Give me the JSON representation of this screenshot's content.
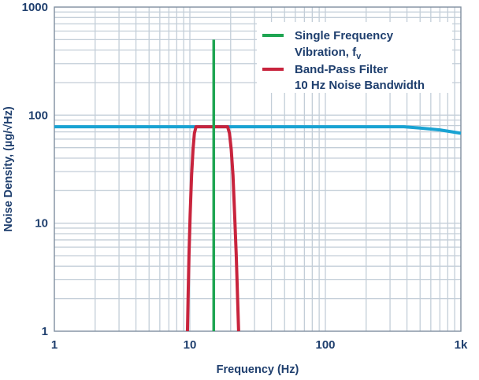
{
  "chart_data": {
    "type": "line",
    "xlabel": "Frequency (Hz)",
    "ylabel": "Noise Density, (µg/√Hz)",
    "xscale": "log",
    "yscale": "log",
    "xlim": [
      1,
      1000
    ],
    "ylim": [
      1,
      1000
    ],
    "grid": true,
    "legend_position": "top-right",
    "xticks": [
      {
        "value": 1,
        "label": "1"
      },
      {
        "value": 10,
        "label": "10"
      },
      {
        "value": 100,
        "label": "100"
      },
      {
        "value": 1000,
        "label": "1k"
      }
    ],
    "yticks": [
      {
        "value": 1,
        "label": "1"
      },
      {
        "value": 10,
        "label": "10"
      },
      {
        "value": 100,
        "label": "100"
      },
      {
        "value": 1000,
        "label": "1000"
      }
    ],
    "series": [
      {
        "name": "",
        "color": "#19a3d3",
        "x": [
          1,
          5,
          20,
          100,
          380,
          500,
          700,
          1000
        ],
        "y": [
          78,
          78,
          78,
          78,
          78,
          76,
          73,
          68
        ]
      },
      {
        "name": "Band-Pass Filter 10 Hz Noise Bandwidth",
        "legend_lines": [
          "Band-Pass Filter",
          "10 Hz Noise Bandwidth"
        ],
        "color": "#c8243d",
        "x": [
          9.6,
          9.7,
          9.85,
          10.05,
          10.3,
          10.55,
          10.8,
          11.1,
          12,
          14,
          16,
          18,
          19,
          19.6,
          20.2,
          20.8,
          21.4,
          22.0,
          22.5,
          22.9
        ],
        "y": [
          1,
          2,
          5,
          12,
          28,
          48,
          68,
          78,
          78,
          78,
          78,
          78,
          78,
          68,
          48,
          28,
          12,
          5,
          2,
          1
        ]
      },
      {
        "name": "Single Frequency Vibration, fv",
        "legend_lines": [
          "Single Frequency",
          "Vibration, f"
        ],
        "legend_subscript": "v",
        "color": "#1fa552",
        "x": [
          15,
          15
        ],
        "y": [
          1,
          500
        ]
      }
    ]
  }
}
